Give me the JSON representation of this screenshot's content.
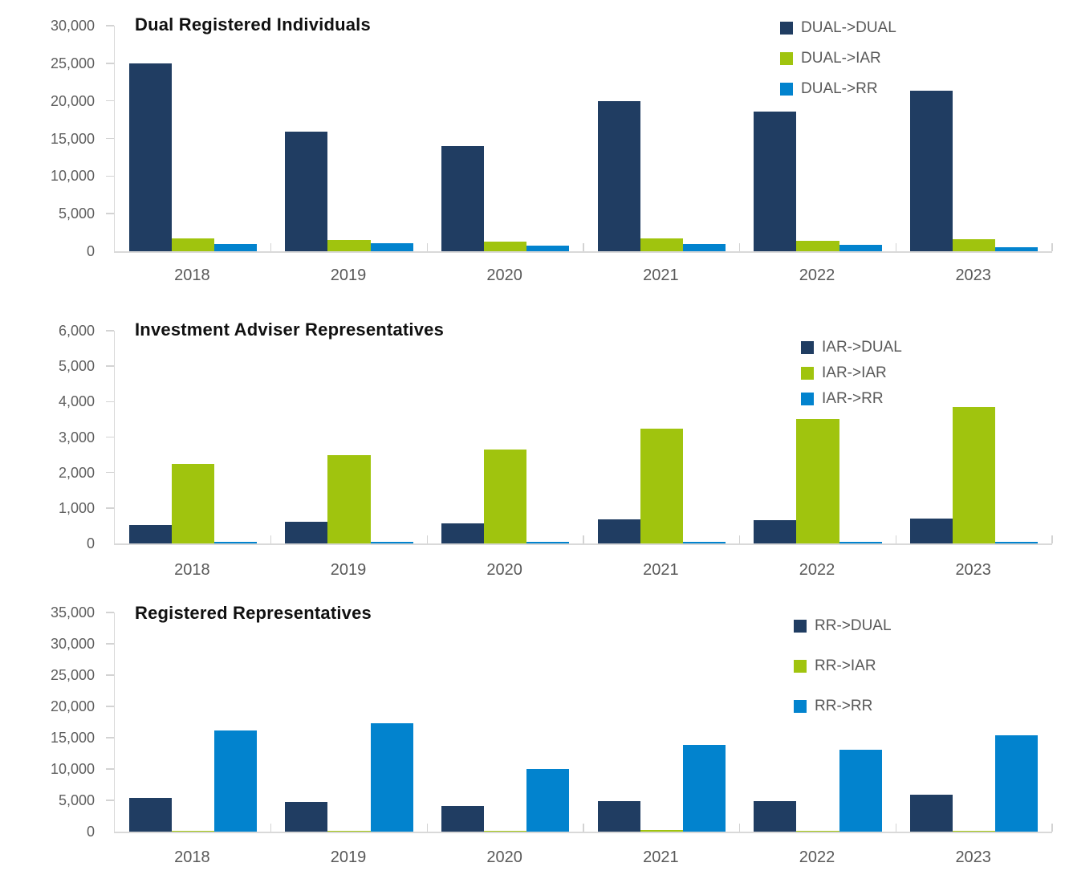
{
  "colors": {
    "navy": "#203d62",
    "green": "#a0c40e",
    "blue": "#0283ce",
    "axis_line": "#d9d9d9",
    "tick_mark": "#d3d3d3",
    "axis_text": "#595959",
    "title_text": "#111111"
  },
  "chart_data": [
    {
      "type": "bar",
      "title": "Dual Registered Individuals",
      "categories": [
        "2018",
        "2019",
        "2020",
        "2021",
        "2022",
        "2023"
      ],
      "series": [
        {
          "name": "DUAL->DUAL",
          "color_key": "navy",
          "values": [
            24950,
            15900,
            13950,
            19950,
            18600,
            21350
          ]
        },
        {
          "name": "DUAL->IAR",
          "color_key": "green",
          "values": [
            1700,
            1450,
            1300,
            1700,
            1400,
            1600
          ]
        },
        {
          "name": "DUAL->RR",
          "color_key": "blue",
          "values": [
            950,
            1100,
            750,
            1000,
            900,
            500
          ]
        }
      ],
      "xlabel": "",
      "ylabel": "",
      "ylim": [
        0,
        30000
      ],
      "yticks": [
        {
          "value": 0,
          "label": "0"
        },
        {
          "value": 5000,
          "label": "5,000"
        },
        {
          "value": 10000,
          "label": "10,000"
        },
        {
          "value": 15000,
          "label": "15,000"
        },
        {
          "value": 20000,
          "label": "20,000"
        },
        {
          "value": 25000,
          "label": "25,000"
        },
        {
          "value": 30000,
          "label": "30,000"
        }
      ],
      "grid": false,
      "legend_position": "top-right"
    },
    {
      "type": "bar",
      "title": "Investment Adviser Representatives",
      "categories": [
        "2018",
        "2019",
        "2020",
        "2021",
        "2022",
        "2023"
      ],
      "series": [
        {
          "name": "IAR->DUAL",
          "color_key": "navy",
          "values": [
            510,
            615,
            570,
            690,
            660,
            710
          ]
        },
        {
          "name": "IAR->IAR",
          "color_key": "green",
          "values": [
            2250,
            2480,
            2640,
            3230,
            3520,
            3860
          ]
        },
        {
          "name": "IAR->RR",
          "color_key": "blue",
          "values": [
            40,
            45,
            35,
            45,
            45,
            45
          ]
        }
      ],
      "xlabel": "",
      "ylabel": "",
      "ylim": [
        0,
        6000
      ],
      "yticks": [
        {
          "value": 0,
          "label": "0"
        },
        {
          "value": 1000,
          "label": "1,000"
        },
        {
          "value": 2000,
          "label": "2,000"
        },
        {
          "value": 3000,
          "label": "3,000"
        },
        {
          "value": 4000,
          "label": "4,000"
        },
        {
          "value": 5000,
          "label": "5,000"
        },
        {
          "value": 6000,
          "label": "6,000"
        }
      ],
      "grid": false,
      "legend_position": "top-right"
    },
    {
      "type": "bar",
      "title": "Registered Representatives",
      "categories": [
        "2018",
        "2019",
        "2020",
        "2021",
        "2022",
        "2023"
      ],
      "series": [
        {
          "name": "RR->DUAL",
          "color_key": "navy",
          "values": [
            5400,
            4800,
            4050,
            4850,
            4850,
            5950
          ]
        },
        {
          "name": "RR->IAR",
          "color_key": "green",
          "values": [
            150,
            100,
            100,
            250,
            100,
            100
          ]
        },
        {
          "name": "RR->RR",
          "color_key": "blue",
          "values": [
            16100,
            17350,
            9950,
            13800,
            13100,
            15450
          ]
        }
      ],
      "xlabel": "",
      "ylabel": "",
      "ylim": [
        0,
        35000
      ],
      "yticks": [
        {
          "value": 0,
          "label": "0"
        },
        {
          "value": 5000,
          "label": "5,000"
        },
        {
          "value": 10000,
          "label": "10,000"
        },
        {
          "value": 15000,
          "label": "15,000"
        },
        {
          "value": 20000,
          "label": "20,000"
        },
        {
          "value": 25000,
          "label": "25,000"
        },
        {
          "value": 30000,
          "label": "30,000"
        },
        {
          "value": 35000,
          "label": "35,000"
        }
      ],
      "grid": false,
      "legend_position": "top-right"
    }
  ]
}
